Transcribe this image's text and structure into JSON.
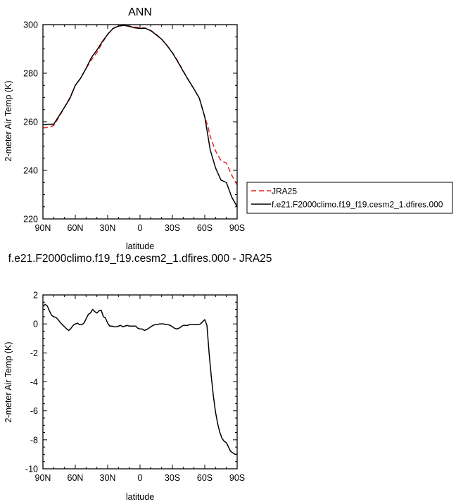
{
  "chart_data": [
    {
      "type": "line",
      "title": "ANN",
      "xlabel": "latitude",
      "ylabel": "2-meter Air Temp (K)",
      "x_ticks": [
        "90N",
        "60N",
        "30N",
        "0",
        "30S",
        "60S",
        "90S"
      ],
      "y_ticks": [
        "220",
        "240",
        "260",
        "280",
        "300"
      ],
      "xlim": [
        90,
        -90
      ],
      "ylim": [
        220,
        300
      ],
      "legend_position": "right",
      "series": [
        {
          "name": "JRA25",
          "color": "#e8201c",
          "dash": "dashed",
          "x": [
            90,
            85,
            80,
            75,
            70,
            65,
            60,
            55,
            50,
            45,
            40,
            35,
            30,
            25,
            20,
            15,
            10,
            5,
            0,
            -5,
            -10,
            -15,
            -20,
            -25,
            -30,
            -35,
            -40,
            -45,
            -50,
            -55,
            -60,
            -63,
            -65,
            -70,
            -75,
            -80,
            -85,
            -90
          ],
          "y": [
            257.5,
            257.6,
            258.5,
            262,
            266,
            270,
            275,
            278,
            282,
            285.5,
            288.5,
            292.5,
            296,
            298.5,
            299.5,
            299.6,
            299.4,
            299,
            298.8,
            298.6,
            297.6,
            296,
            294,
            291.5,
            288.5,
            285,
            281,
            277,
            273.5,
            269.5,
            262,
            258,
            254,
            248,
            244,
            243,
            238,
            234
          ]
        },
        {
          "name": "f.e21.F2000climo.f19_f19.cesm2_1.dfires.000",
          "color": "#000000",
          "dash": "solid",
          "x": [
            90,
            85,
            80,
            75,
            70,
            65,
            60,
            55,
            50,
            45,
            40,
            35,
            30,
            25,
            20,
            15,
            10,
            5,
            0,
            -5,
            -10,
            -15,
            -20,
            -25,
            -30,
            -35,
            -40,
            -45,
            -50,
            -55,
            -60,
            -63,
            -65,
            -70,
            -75,
            -80,
            -85,
            -90
          ],
          "y": [
            258.8,
            259,
            259,
            262.5,
            266,
            269.6,
            275,
            278,
            282,
            286.5,
            289.5,
            293,
            296,
            298.4,
            299.4,
            299.7,
            299.3,
            298.7,
            298.4,
            298.5,
            297.5,
            295.8,
            294,
            291.4,
            288.4,
            284.7,
            280.8,
            277.1,
            273.5,
            269.7,
            262,
            254,
            248.5,
            241,
            236,
            235,
            229,
            225
          ]
        }
      ]
    },
    {
      "type": "line",
      "title": "f.e21.F2000climo.f19_f19.cesm2_1.dfires.000 - JRA25",
      "xlabel": "latitude",
      "ylabel": "2-meter Air Temp (K)",
      "x_ticks": [
        "90N",
        "60N",
        "30N",
        "0",
        "30S",
        "60S",
        "90S"
      ],
      "y_ticks": [
        "2",
        "0",
        "-2",
        "-4",
        "-6",
        "-8",
        "-10"
      ],
      "xlim": [
        90,
        -90
      ],
      "ylim": [
        -10,
        2
      ],
      "series": [
        {
          "color": "#000000",
          "dash": "solid",
          "x": [
            90,
            88,
            86,
            84,
            82,
            80,
            78,
            76,
            74,
            72,
            70,
            68,
            66,
            64,
            62,
            60,
            58,
            56,
            54,
            52,
            50,
            48,
            46,
            44,
            42,
            40,
            38,
            36,
            34,
            32,
            30,
            28,
            26,
            24,
            22,
            20,
            18,
            16,
            14,
            12,
            10,
            8,
            6,
            4,
            2,
            0,
            -2,
            -4,
            -6,
            -8,
            -10,
            -12,
            -14,
            -16,
            -18,
            -20,
            -22,
            -24,
            -26,
            -28,
            -30,
            -32,
            -34,
            -36,
            -38,
            -40,
            -42,
            -44,
            -46,
            -48,
            -50,
            -52,
            -54,
            -56,
            -58,
            -60,
            -62,
            -64,
            -66,
            -68,
            -70,
            -72,
            -74,
            -76,
            -78,
            -80,
            -82,
            -84,
            -86,
            -88,
            -90
          ],
          "y": [
            1.2,
            1.35,
            1.25,
            0.9,
            0.6,
            0.5,
            0.45,
            0.3,
            0.1,
            -0.05,
            -0.2,
            -0.35,
            -0.45,
            -0.3,
            -0.1,
            0.0,
            0.05,
            -0.05,
            -0.05,
            0.05,
            0.35,
            0.65,
            0.75,
            1.0,
            0.85,
            0.75,
            0.9,
            0.95,
            0.5,
            0.4,
            0.05,
            -0.15,
            -0.15,
            -0.2,
            -0.2,
            -0.15,
            -0.1,
            -0.2,
            -0.15,
            -0.1,
            -0.15,
            -0.15,
            -0.15,
            -0.15,
            -0.3,
            -0.35,
            -0.35,
            -0.45,
            -0.4,
            -0.3,
            -0.2,
            -0.1,
            -0.05,
            -0.05,
            0.0,
            0.0,
            0.0,
            -0.05,
            -0.05,
            -0.1,
            -0.2,
            -0.3,
            -0.35,
            -0.3,
            -0.2,
            -0.1,
            -0.1,
            -0.1,
            -0.05,
            -0.05,
            -0.05,
            -0.05,
            -0.05,
            0.0,
            0.15,
            0.3,
            -0.1,
            -2.0,
            -3.6,
            -5.0,
            -6.1,
            -6.9,
            -7.5,
            -7.9,
            -8.1,
            -8.2,
            -8.5,
            -8.8,
            -8.9,
            -9.0,
            -9.0
          ]
        }
      ]
    }
  ]
}
